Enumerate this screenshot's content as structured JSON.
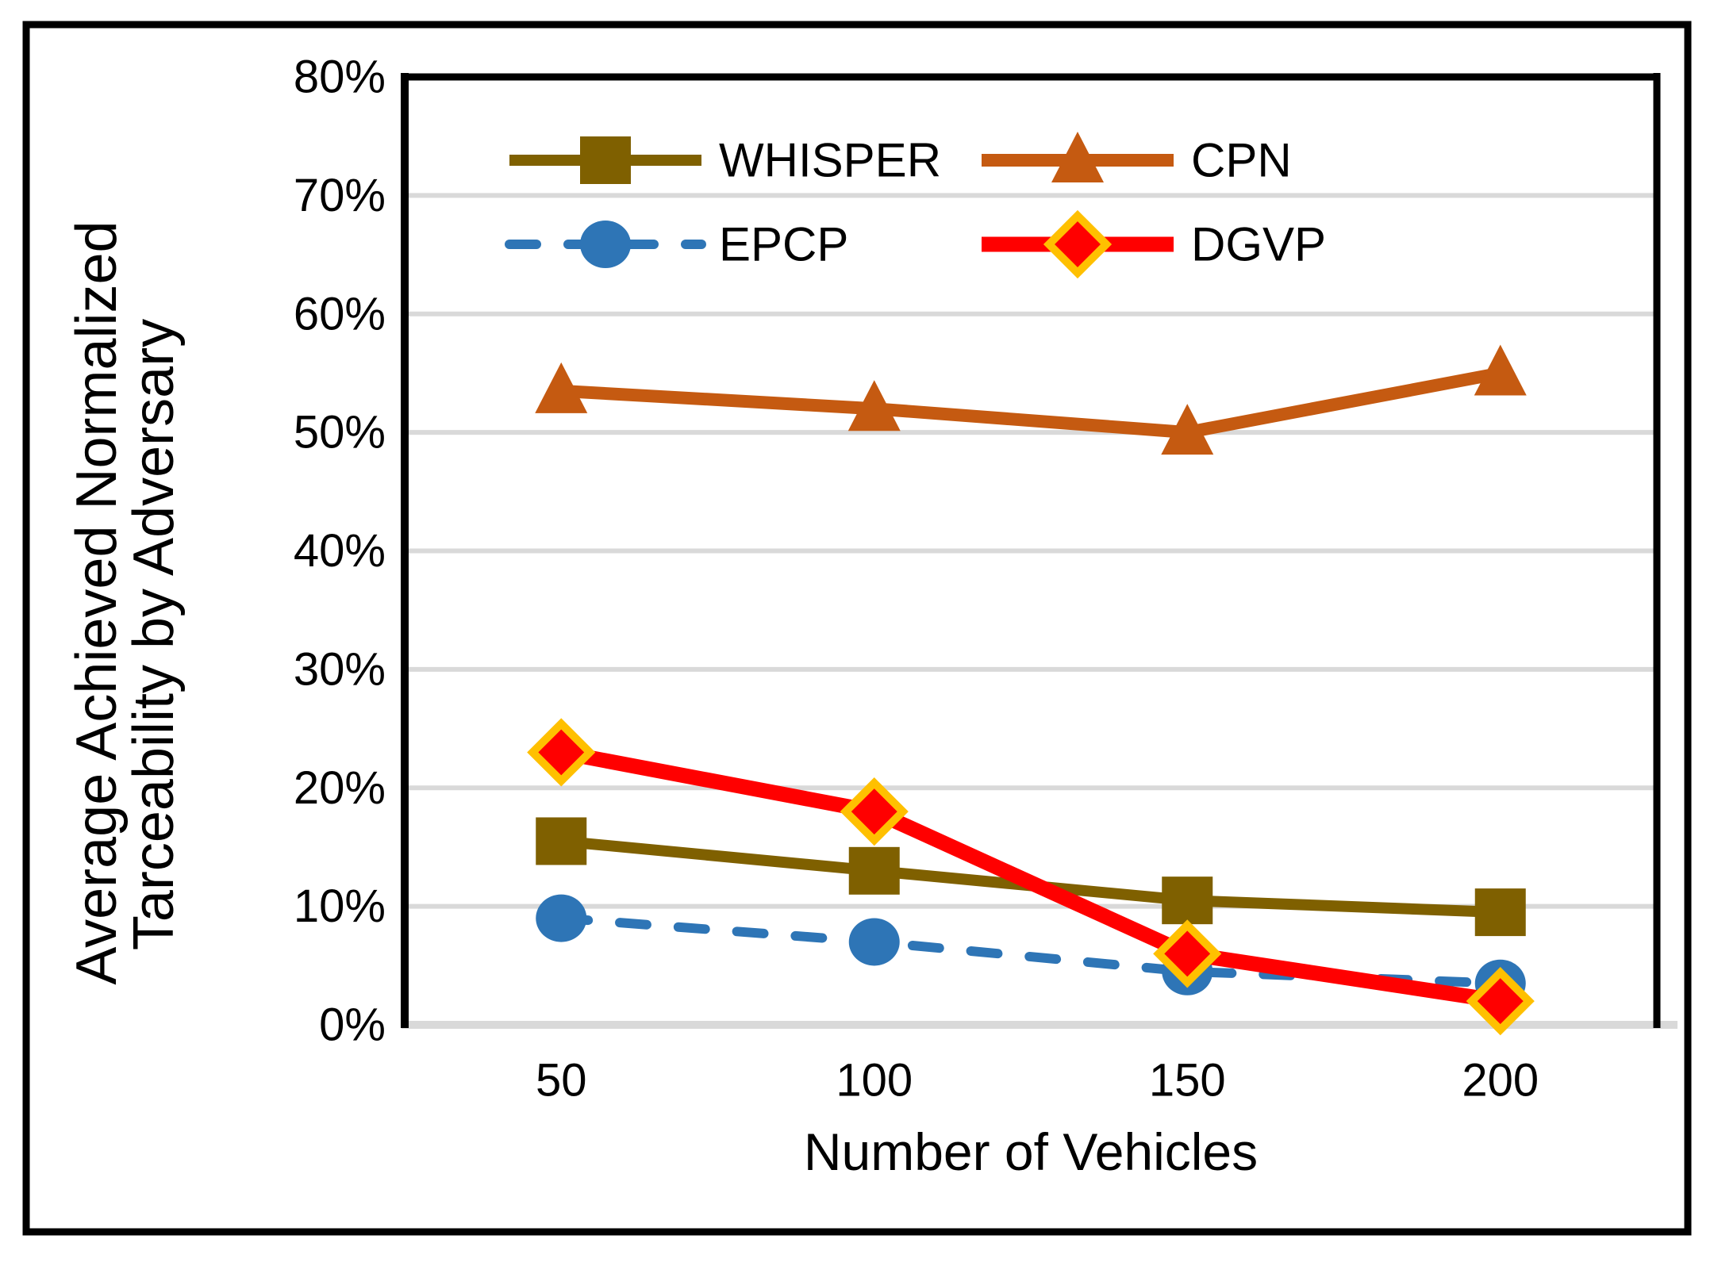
{
  "figure": {
    "background": "#FFFFFF",
    "frame_border_color": "#000000",
    "plot_border_color": "#000000",
    "gridline_color": "#D9D9D9",
    "text_color": "#000000"
  },
  "chart_data": {
    "type": "line",
    "title": "",
    "xlabel": "Number of Vehicles",
    "ylabel_line1": "Average Achieved Normalized",
    "ylabel_line2": "Tarceability by Adversary",
    "categories": [
      50,
      100,
      150,
      200
    ],
    "x_tick_labels": [
      "50",
      "100",
      "150",
      "200"
    ],
    "y_tick_labels": [
      "0%",
      "10%",
      "20%",
      "30%",
      "40%",
      "50%",
      "60%",
      "70%",
      "80%"
    ],
    "ylim_pct": [
      0,
      80
    ],
    "grid": "horizontal",
    "legend_position": "top-inside-2x2",
    "series": [
      {
        "name": "WHISPER",
        "values_pct": [
          15.5,
          13,
          10.5,
          9.5
        ],
        "color": "#7F6000",
        "marker": "square",
        "line_style": "solid",
        "line_width": 14
      },
      {
        "name": "CPN",
        "values_pct": [
          53.5,
          52,
          50,
          55
        ],
        "color": "#C55A11",
        "marker": "triangle",
        "line_style": "solid",
        "line_width": 16
      },
      {
        "name": "EPCP",
        "values_pct": [
          9,
          7,
          4.5,
          3.5
        ],
        "color": "#2E75B6",
        "marker": "circle",
        "line_style": "dashed",
        "line_width": 12
      },
      {
        "name": "DGVP",
        "values_pct": [
          23,
          18,
          6,
          2
        ],
        "color": "#FF0000",
        "marker": "diamond",
        "marker_border": "#FFC000",
        "line_style": "solid",
        "line_width": 19
      }
    ],
    "legend_items": [
      "WHISPER",
      "CPN",
      "EPCP",
      "DGVP"
    ]
  }
}
